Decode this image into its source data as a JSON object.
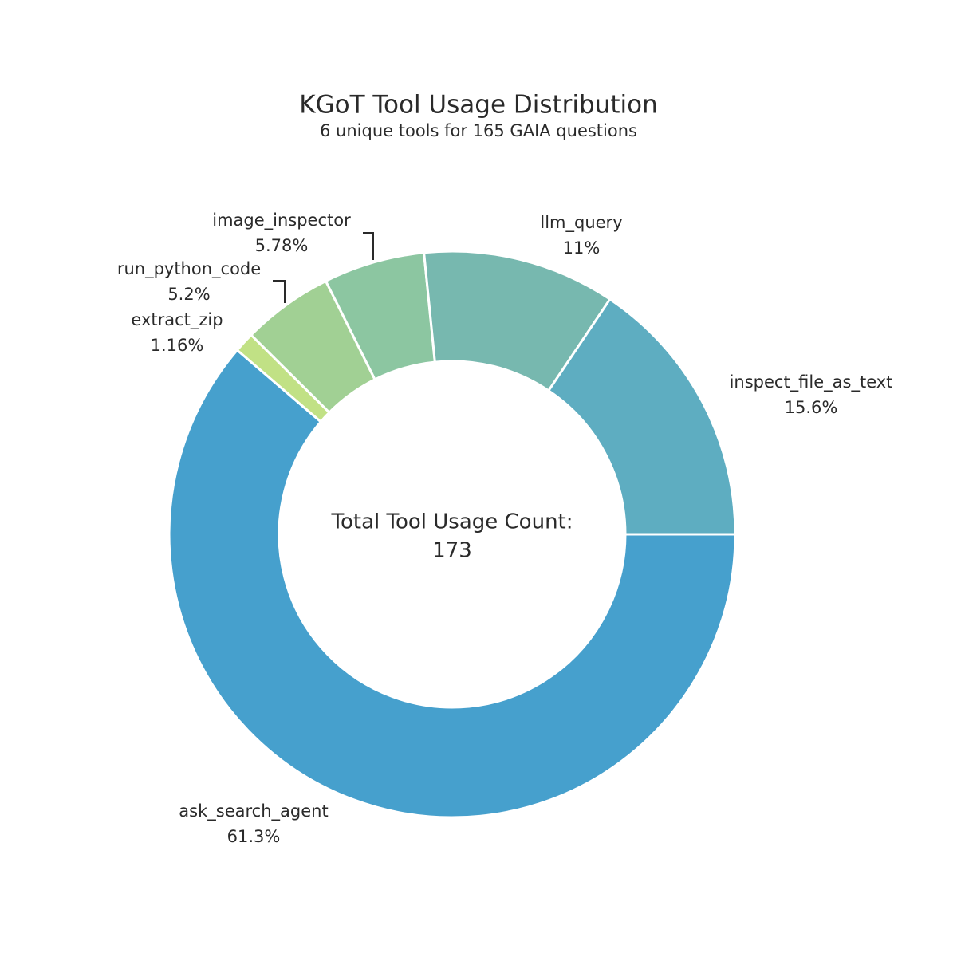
{
  "chart_data": {
    "type": "donut",
    "title": "KGoT Tool Usage Distribution",
    "subtitle": "6 unique tools for 165 GAIA questions",
    "center_label": "Total Tool Usage Count:",
    "center_value": 173,
    "categories": [
      "ask_search_agent",
      "extract_zip",
      "run_python_code",
      "image_inspector",
      "llm_query",
      "inspect_file_as_text"
    ],
    "values": [
      61.3,
      1.16,
      5.2,
      5.78,
      11,
      15.6
    ],
    "value_labels": [
      "61.3%",
      "1.16%",
      "5.2%",
      "5.78%",
      "11%",
      "15.6%"
    ],
    "colors": [
      "#46a0cd",
      "#c1e185",
      "#a1d094",
      "#8cc6a1",
      "#77b8af",
      "#5eadc1"
    ]
  }
}
